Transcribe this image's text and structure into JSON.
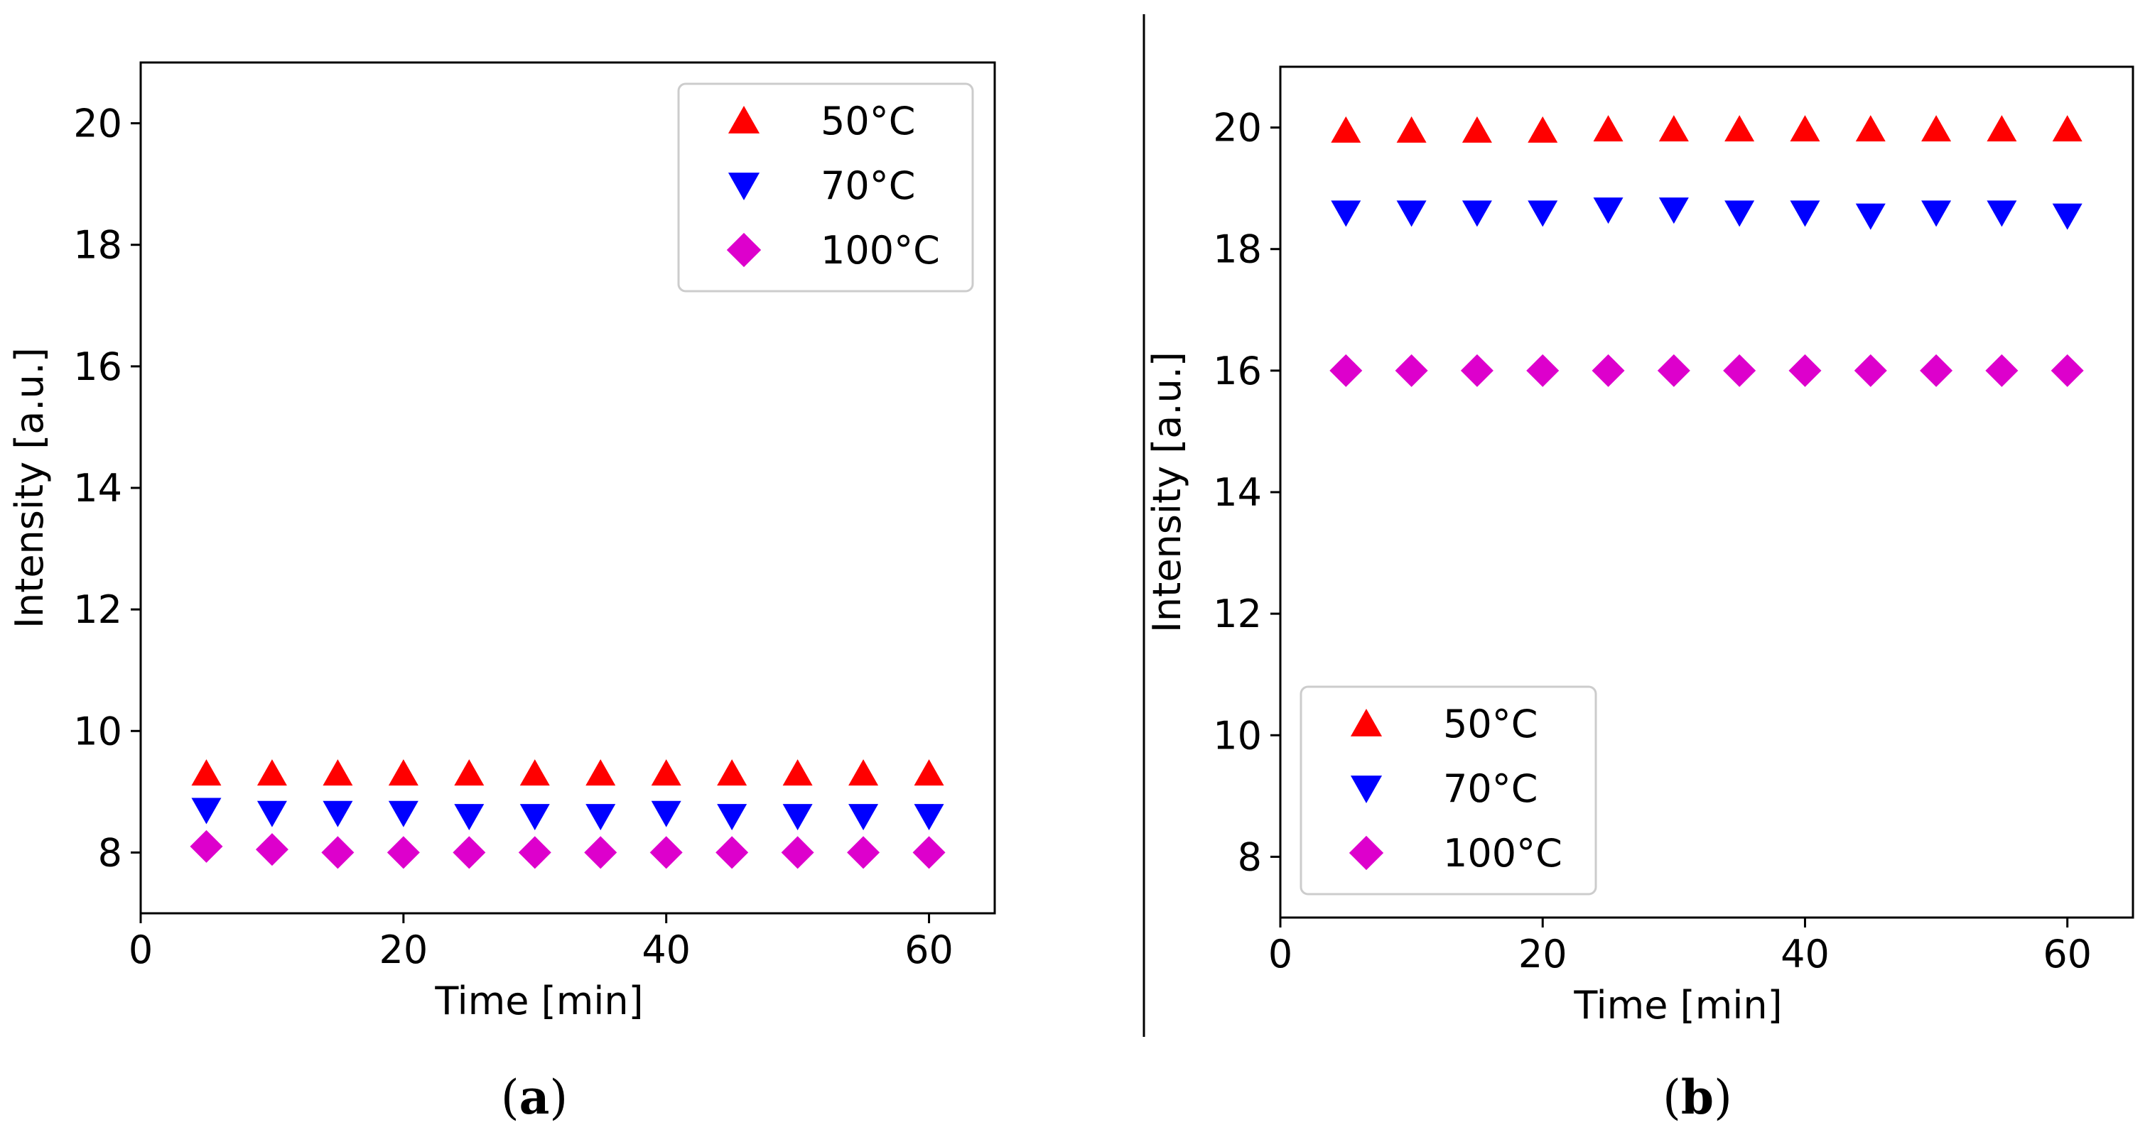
{
  "chart_data": [
    {
      "type": "scatter",
      "panel": "a",
      "caption_letter": "a",
      "title": "",
      "xlabel": "Time [min]",
      "ylabel": "Intensity [a.u.]",
      "xlim": [
        0,
        65
      ],
      "ylim": [
        7,
        21
      ],
      "xticks": [
        0,
        20,
        40,
        60
      ],
      "yticks": [
        8,
        10,
        12,
        14,
        16,
        18,
        20
      ],
      "legend_position": "top-right",
      "x": [
        5,
        10,
        15,
        20,
        25,
        30,
        35,
        40,
        45,
        50,
        55,
        60
      ],
      "series": [
        {
          "name": "50°C",
          "marker": "triangle-up",
          "color": "#ff0000",
          "values": [
            9.3,
            9.3,
            9.3,
            9.3,
            9.3,
            9.3,
            9.3,
            9.3,
            9.3,
            9.3,
            9.3,
            9.3
          ]
        },
        {
          "name": "70°C",
          "marker": "triangle-down",
          "color": "#0000ff",
          "values": [
            8.7,
            8.65,
            8.65,
            8.65,
            8.6,
            8.6,
            8.6,
            8.65,
            8.6,
            8.6,
            8.6,
            8.6
          ]
        },
        {
          "name": "100°C",
          "marker": "diamond",
          "color": "#dd00cc",
          "values": [
            8.1,
            8.05,
            8.0,
            8.0,
            8.0,
            8.0,
            8.0,
            8.0,
            8.0,
            8.0,
            8.0,
            8.0
          ]
        }
      ]
    },
    {
      "type": "scatter",
      "panel": "b",
      "caption_letter": "b",
      "title": "",
      "xlabel": "Time [min]",
      "ylabel": "Intensity [a.u.]",
      "xlim": [
        0,
        65
      ],
      "ylim": [
        7,
        21
      ],
      "xticks": [
        0,
        20,
        40,
        60
      ],
      "yticks": [
        8,
        10,
        12,
        14,
        16,
        18,
        20
      ],
      "legend_position": "bottom-left",
      "x": [
        5,
        10,
        15,
        20,
        25,
        30,
        35,
        40,
        45,
        50,
        55,
        60
      ],
      "series": [
        {
          "name": "50°C",
          "marker": "triangle-up",
          "color": "#ff0000",
          "values": [
            19.95,
            19.95,
            19.95,
            19.95,
            19.97,
            19.97,
            19.97,
            19.97,
            19.97,
            19.97,
            19.97,
            19.97
          ]
        },
        {
          "name": "70°C",
          "marker": "triangle-down",
          "color": "#0000ff",
          "values": [
            18.6,
            18.6,
            18.6,
            18.6,
            18.65,
            18.65,
            18.6,
            18.6,
            18.55,
            18.6,
            18.6,
            18.55
          ]
        },
        {
          "name": "100°C",
          "marker": "diamond",
          "color": "#dd00cc",
          "values": [
            16.0,
            16.0,
            16.0,
            16.0,
            16.0,
            16.0,
            16.0,
            16.0,
            16.0,
            16.0,
            16.0,
            16.0
          ]
        }
      ]
    }
  ]
}
